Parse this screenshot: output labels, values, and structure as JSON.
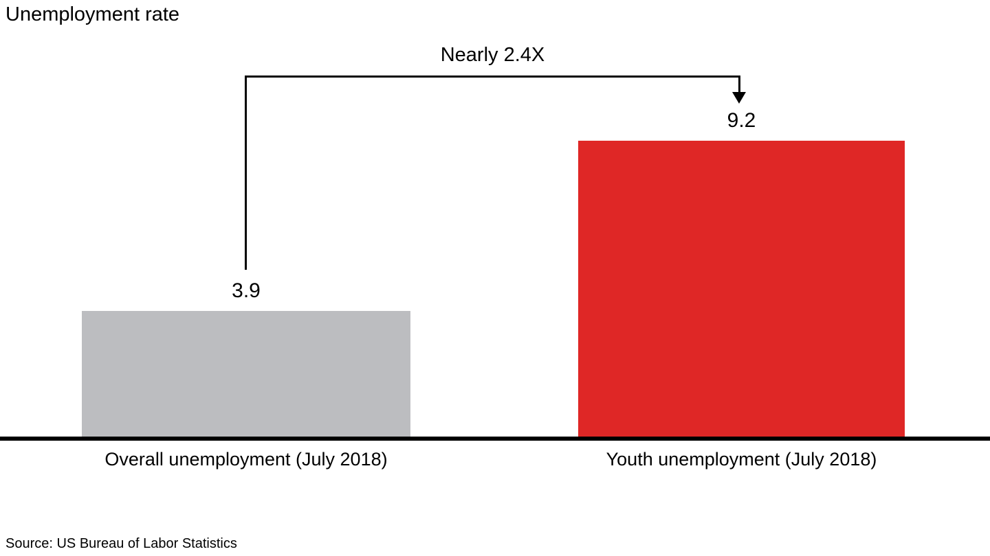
{
  "title": "Unemployment rate",
  "annotation": {
    "label": "Nearly 2.4X"
  },
  "source": "Source: US Bureau of Labor Statistics",
  "chart_data": {
    "type": "bar",
    "title": "Unemployment rate",
    "categories": [
      "Overall unemployment (July 2018)",
      "Youth unemployment (July 2018)"
    ],
    "values": [
      3.9,
      9.2
    ],
    "value_labels": [
      "3.9",
      "9.2"
    ],
    "colors": [
      "#BCBDC0",
      "#DF2726"
    ],
    "annotation": "Nearly 2.4X",
    "annotation_meaning": "Youth unemployment is nearly 2.4 times overall unemployment",
    "xlabel": "",
    "ylabel": "Unemployment rate",
    "ylim": [
      0,
      10
    ],
    "grid": false,
    "legend": null,
    "axis_line_color": "#000000",
    "source": "Source: US Bureau of Labor Statistics"
  }
}
